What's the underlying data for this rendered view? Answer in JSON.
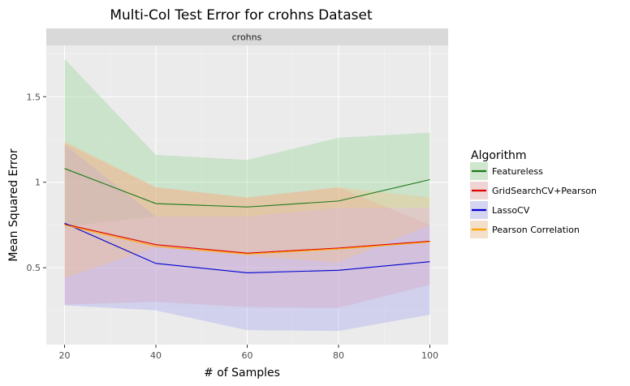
{
  "chart_data": {
    "type": "line",
    "title": "Multi-Col Test Error for crohns Dataset",
    "facet_label": "crohns",
    "xlabel": "# of Samples",
    "ylabel": "Mean Squared Error",
    "x": [
      20,
      40,
      60,
      80,
      100
    ],
    "xticks": [
      20,
      40,
      60,
      80,
      100
    ],
    "xtick_labels": [
      "20",
      "40",
      "60",
      "80",
      "100"
    ],
    "yticks": [
      0.5,
      1.0,
      1.5
    ],
    "ytick_labels": [
      "0.5",
      "1",
      "1.5"
    ],
    "xlim": [
      16,
      104
    ],
    "ylim": [
      0.05,
      1.8
    ],
    "grid": true,
    "legend_title": "Algorithm",
    "legend_position": "right",
    "series": [
      {
        "name": "Featureless",
        "color": "#1a7a1a",
        "fill": "#90d090",
        "values": [
          1.08,
          0.875,
          0.855,
          0.89,
          1.015
        ],
        "lower": [
          0.74,
          0.8,
          0.8,
          0.85,
          0.85
        ],
        "upper": [
          1.72,
          1.16,
          1.13,
          1.26,
          1.29
        ]
      },
      {
        "name": "GridSearchCV+Pearson",
        "color": "#e00000",
        "fill": "#f2a0a0",
        "values": [
          0.755,
          0.635,
          0.585,
          0.615,
          0.655
        ],
        "lower": [
          0.285,
          0.3,
          0.27,
          0.265,
          0.4
        ],
        "upper": [
          1.23,
          0.97,
          0.91,
          0.97,
          0.75
        ]
      },
      {
        "name": "LassoCV",
        "color": "#0000d0",
        "fill": "#a0a0f0",
        "values": [
          0.76,
          0.525,
          0.47,
          0.485,
          0.535
        ],
        "lower": [
          0.28,
          0.25,
          0.135,
          0.13,
          0.225
        ],
        "upper": [
          1.22,
          0.8,
          0.8,
          0.85,
          0.85
        ]
      },
      {
        "name": "Pearson Correlation",
        "color": "#ffa500",
        "fill": "#f5c080",
        "values": [
          0.75,
          0.625,
          0.58,
          0.61,
          0.65
        ],
        "lower": [
          0.44,
          0.62,
          0.57,
          0.53,
          0.75
        ],
        "upper": [
          1.24,
          0.97,
          0.91,
          0.97,
          0.91
        ]
      }
    ]
  }
}
